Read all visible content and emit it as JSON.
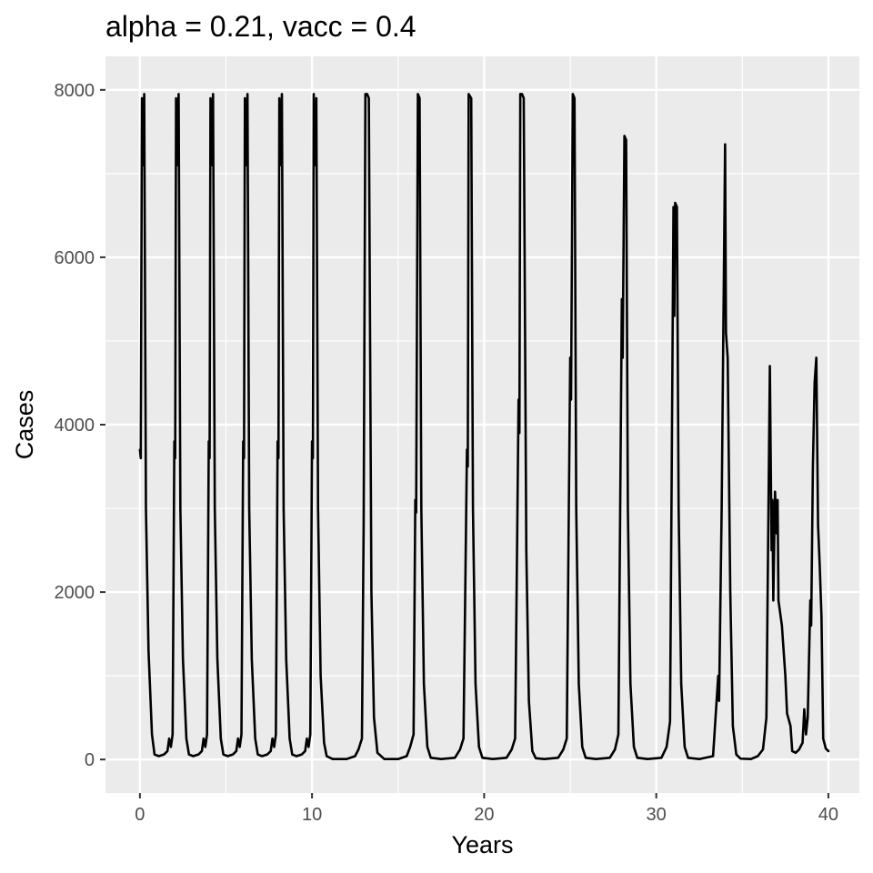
{
  "chart_data": {
    "type": "line",
    "title": "alpha = 0.21, vacc = 0.4",
    "xlabel": "Years",
    "ylabel": "Cases",
    "xlim": [
      -2,
      41.8
    ],
    "ylim": [
      -400,
      8400
    ],
    "x_ticks": [
      0,
      10,
      20,
      30,
      40
    ],
    "y_ticks": [
      0,
      2000,
      4000,
      6000,
      8000
    ],
    "x_tick_labels": [
      "0",
      "10",
      "20",
      "30",
      "40"
    ],
    "y_tick_labels": [
      "0",
      "2000",
      "4000",
      "6000",
      "8000"
    ],
    "x_minor_ticks": [
      5,
      15,
      25,
      35
    ],
    "y_minor_ticks": [
      1000,
      3000,
      5000,
      7000
    ],
    "grid": true,
    "legend": "none",
    "colors": {
      "line": "#000000",
      "panel": "#ebebeb",
      "grid": "#ffffff"
    },
    "series": [
      {
        "points": [
          [
            0,
            3700
          ],
          [
            0.05,
            3600
          ],
          [
            0.12,
            7900
          ],
          [
            0.18,
            7100
          ],
          [
            0.25,
            7950
          ],
          [
            0.35,
            3000
          ],
          [
            0.5,
            1300
          ],
          [
            0.7,
            300
          ],
          [
            0.85,
            60
          ],
          [
            1.1,
            40
          ],
          [
            1.4,
            60
          ],
          [
            1.6,
            100
          ],
          [
            1.7,
            250
          ],
          [
            1.8,
            150
          ],
          [
            1.9,
            300
          ],
          [
            2.0,
            3800
          ],
          [
            2.05,
            3600
          ],
          [
            2.1,
            7900
          ],
          [
            2.15,
            7100
          ],
          [
            2.25,
            7950
          ],
          [
            2.35,
            3000
          ],
          [
            2.5,
            1200
          ],
          [
            2.7,
            250
          ],
          [
            2.85,
            60
          ],
          [
            3.1,
            40
          ],
          [
            3.4,
            60
          ],
          [
            3.6,
            100
          ],
          [
            3.7,
            250
          ],
          [
            3.8,
            150
          ],
          [
            3.9,
            300
          ],
          [
            4.0,
            3800
          ],
          [
            4.05,
            3600
          ],
          [
            4.1,
            7900
          ],
          [
            4.15,
            7100
          ],
          [
            4.25,
            7950
          ],
          [
            4.35,
            3000
          ],
          [
            4.5,
            1200
          ],
          [
            4.7,
            250
          ],
          [
            4.85,
            60
          ],
          [
            5.1,
            40
          ],
          [
            5.4,
            60
          ],
          [
            5.6,
            100
          ],
          [
            5.7,
            250
          ],
          [
            5.8,
            150
          ],
          [
            5.9,
            300
          ],
          [
            6.0,
            3800
          ],
          [
            6.05,
            3600
          ],
          [
            6.1,
            7900
          ],
          [
            6.15,
            7100
          ],
          [
            6.25,
            7950
          ],
          [
            6.35,
            3000
          ],
          [
            6.5,
            1200
          ],
          [
            6.7,
            250
          ],
          [
            6.85,
            60
          ],
          [
            7.1,
            40
          ],
          [
            7.4,
            60
          ],
          [
            7.6,
            100
          ],
          [
            7.7,
            250
          ],
          [
            7.8,
            150
          ],
          [
            7.9,
            300
          ],
          [
            8.0,
            3800
          ],
          [
            8.05,
            3600
          ],
          [
            8.1,
            7900
          ],
          [
            8.15,
            7100
          ],
          [
            8.25,
            7950
          ],
          [
            8.35,
            3000
          ],
          [
            8.5,
            1200
          ],
          [
            8.7,
            250
          ],
          [
            8.85,
            60
          ],
          [
            9.1,
            40
          ],
          [
            9.4,
            60
          ],
          [
            9.6,
            100
          ],
          [
            9.7,
            250
          ],
          [
            9.8,
            150
          ],
          [
            9.9,
            300
          ],
          [
            10.0,
            3800
          ],
          [
            10.05,
            3600
          ],
          [
            10.1,
            7950
          ],
          [
            10.15,
            7100
          ],
          [
            10.25,
            7900
          ],
          [
            10.35,
            3000
          ],
          [
            10.5,
            1000
          ],
          [
            10.7,
            200
          ],
          [
            10.85,
            40
          ],
          [
            11.2,
            5
          ],
          [
            12.0,
            5
          ],
          [
            12.5,
            40
          ],
          [
            12.7,
            120
          ],
          [
            12.9,
            250
          ],
          [
            13.0,
            2800
          ],
          [
            13.1,
            7950
          ],
          [
            13.2,
            7950
          ],
          [
            13.3,
            7900
          ],
          [
            13.45,
            2000
          ],
          [
            13.6,
            500
          ],
          [
            13.8,
            80
          ],
          [
            14.2,
            5
          ],
          [
            15.0,
            5
          ],
          [
            15.5,
            40
          ],
          [
            15.7,
            150
          ],
          [
            15.9,
            300
          ],
          [
            16.0,
            3100
          ],
          [
            16.05,
            2950
          ],
          [
            16.15,
            7950
          ],
          [
            16.25,
            7900
          ],
          [
            16.35,
            3000
          ],
          [
            16.5,
            900
          ],
          [
            16.7,
            150
          ],
          [
            16.9,
            20
          ],
          [
            17.5,
            5
          ],
          [
            18.3,
            20
          ],
          [
            18.6,
            120
          ],
          [
            18.8,
            250
          ],
          [
            19.0,
            3700
          ],
          [
            19.05,
            3500
          ],
          [
            19.1,
            7950
          ],
          [
            19.25,
            7900
          ],
          [
            19.35,
            3000
          ],
          [
            19.5,
            900
          ],
          [
            19.7,
            150
          ],
          [
            19.9,
            20
          ],
          [
            20.5,
            5
          ],
          [
            21.3,
            20
          ],
          [
            21.6,
            120
          ],
          [
            21.8,
            250
          ],
          [
            22.0,
            4300
          ],
          [
            22.05,
            3900
          ],
          [
            22.1,
            7950
          ],
          [
            22.2,
            7950
          ],
          [
            22.3,
            7900
          ],
          [
            22.45,
            2500
          ],
          [
            22.6,
            700
          ],
          [
            22.8,
            100
          ],
          [
            23.0,
            15
          ],
          [
            23.5,
            5
          ],
          [
            24.3,
            20
          ],
          [
            24.6,
            120
          ],
          [
            24.8,
            250
          ],
          [
            25.0,
            4800
          ],
          [
            25.05,
            4300
          ],
          [
            25.15,
            7950
          ],
          [
            25.25,
            7900
          ],
          [
            25.35,
            3000
          ],
          [
            25.5,
            900
          ],
          [
            25.7,
            150
          ],
          [
            25.9,
            20
          ],
          [
            26.5,
            5
          ],
          [
            27.3,
            20
          ],
          [
            27.6,
            120
          ],
          [
            27.8,
            300
          ],
          [
            28.0,
            5500
          ],
          [
            28.05,
            4800
          ],
          [
            28.15,
            7450
          ],
          [
            28.25,
            7400
          ],
          [
            28.35,
            3000
          ],
          [
            28.5,
            900
          ],
          [
            28.7,
            150
          ],
          [
            28.9,
            20
          ],
          [
            29.5,
            5
          ],
          [
            30.3,
            20
          ],
          [
            30.6,
            150
          ],
          [
            30.8,
            450
          ],
          [
            31.0,
            6600
          ],
          [
            31.05,
            5300
          ],
          [
            31.1,
            6650
          ],
          [
            31.2,
            6600
          ],
          [
            31.3,
            3000
          ],
          [
            31.45,
            900
          ],
          [
            31.65,
            150
          ],
          [
            31.85,
            20
          ],
          [
            32.5,
            5
          ],
          [
            33.3,
            40
          ],
          [
            33.6,
            1000
          ],
          [
            33.65,
            700
          ],
          [
            33.8,
            3000
          ],
          [
            34.0,
            7350
          ],
          [
            34.05,
            5100
          ],
          [
            34.15,
            4800
          ],
          [
            34.3,
            2000
          ],
          [
            34.45,
            400
          ],
          [
            34.65,
            60
          ],
          [
            34.9,
            10
          ],
          [
            35.5,
            5
          ],
          [
            35.9,
            40
          ],
          [
            36.2,
            120
          ],
          [
            36.4,
            500
          ],
          [
            36.6,
            4700
          ],
          [
            36.7,
            2500
          ],
          [
            36.75,
            3100
          ],
          [
            36.8,
            1900
          ],
          [
            36.9,
            3200
          ],
          [
            37.0,
            2700
          ],
          [
            37.05,
            3100
          ],
          [
            37.1,
            1900
          ],
          [
            37.3,
            1600
          ],
          [
            37.5,
            1000
          ],
          [
            37.6,
            550
          ],
          [
            37.8,
            400
          ],
          [
            37.9,
            100
          ],
          [
            38.1,
            80
          ],
          [
            38.3,
            120
          ],
          [
            38.5,
            200
          ],
          [
            38.6,
            600
          ],
          [
            38.7,
            300
          ],
          [
            38.8,
            500
          ],
          [
            38.95,
            1900
          ],
          [
            39.0,
            1600
          ],
          [
            39.1,
            3500
          ],
          [
            39.2,
            4500
          ],
          [
            39.3,
            4800
          ],
          [
            39.4,
            2800
          ],
          [
            39.5,
            2300
          ],
          [
            39.6,
            1700
          ],
          [
            39.7,
            250
          ],
          [
            39.85,
            130
          ],
          [
            40.0,
            100
          ]
        ]
      }
    ]
  }
}
